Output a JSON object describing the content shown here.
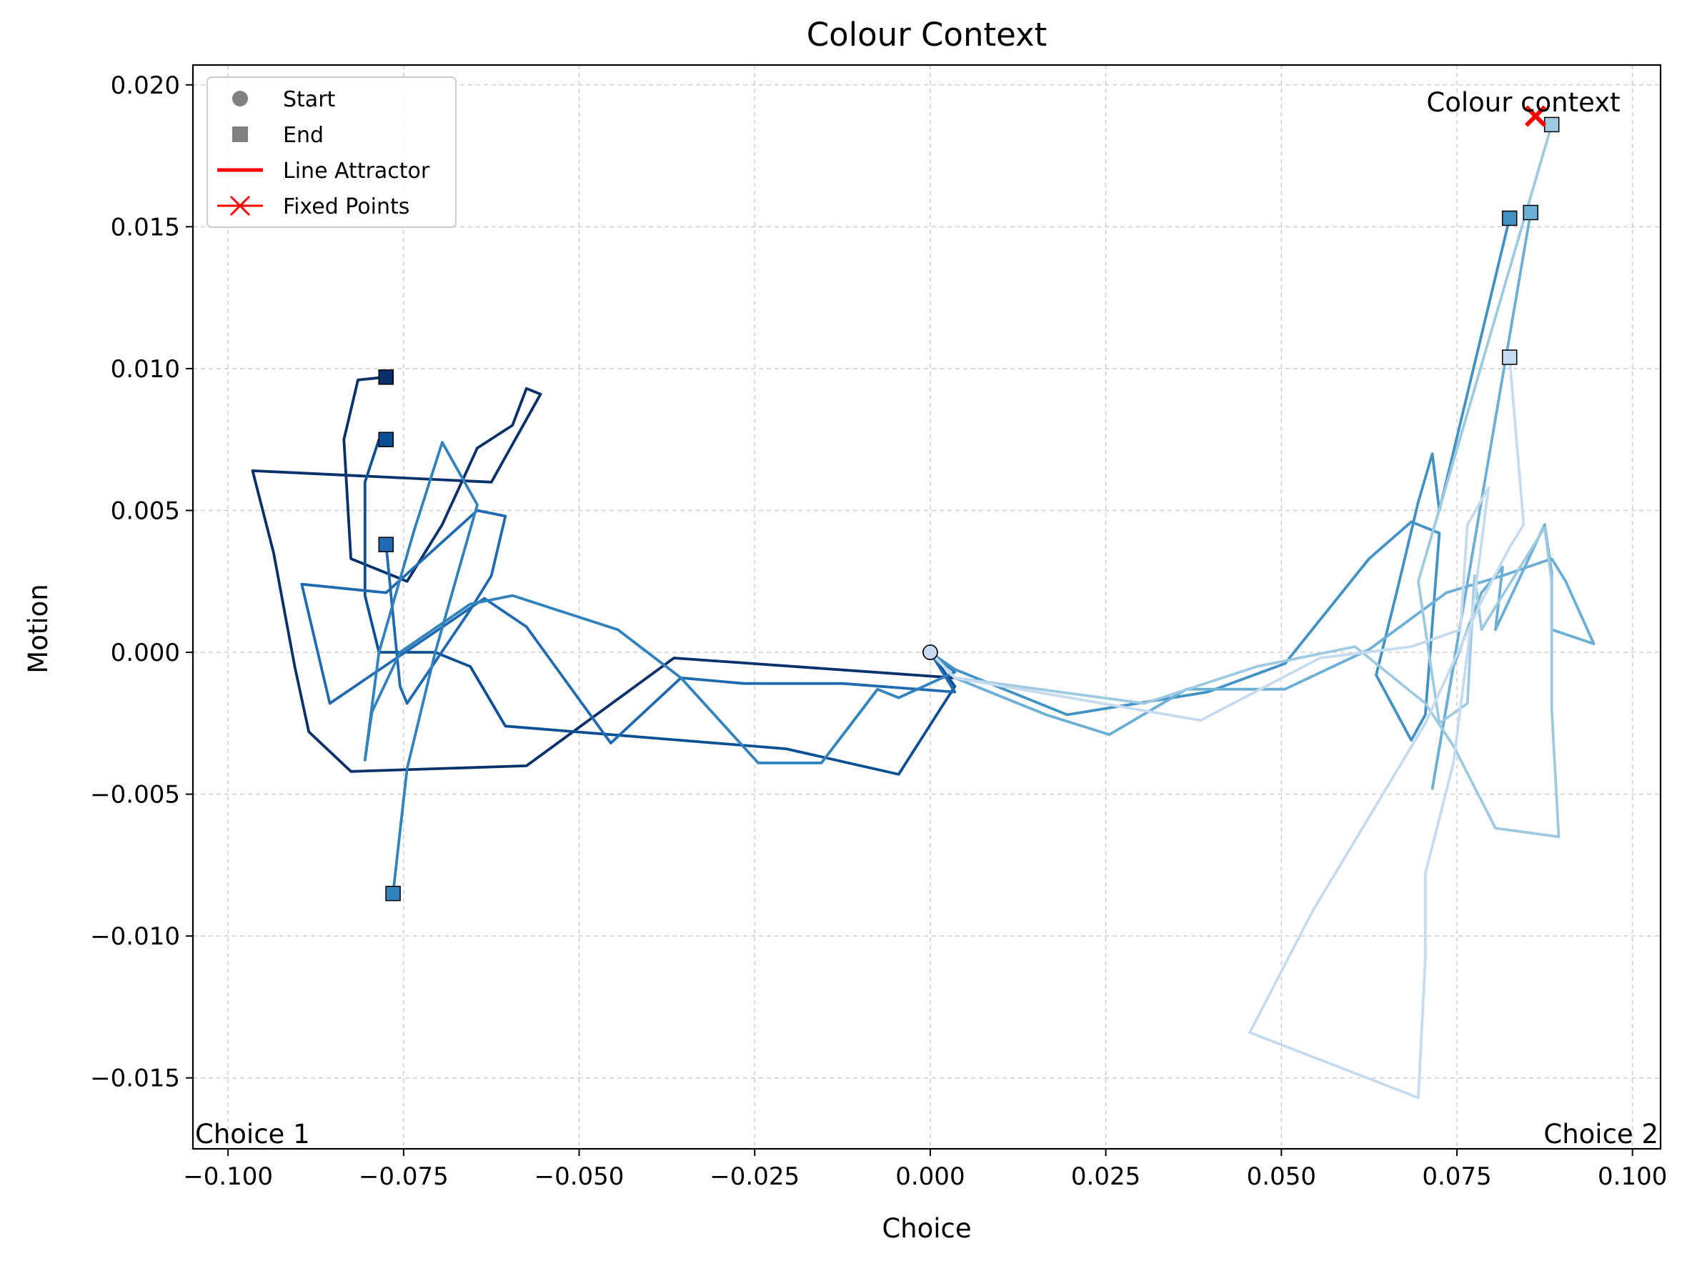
{
  "chart_data": {
    "type": "line",
    "title": "Colour Context",
    "xlabel": "Choice",
    "ylabel": "Motion",
    "xlim": [
      -0.105,
      0.104
    ],
    "ylim": [
      -0.0175,
      0.0207
    ],
    "xticks": [
      -0.1,
      -0.075,
      -0.05,
      -0.025,
      0.0,
      0.025,
      0.05,
      0.075,
      0.1
    ],
    "xtick_labels": [
      "−0.100",
      "−0.075",
      "−0.050",
      "−0.025",
      "0.000",
      "0.025",
      "0.050",
      "0.075",
      "0.100"
    ],
    "yticks": [
      0.02,
      0.015,
      0.01,
      0.005,
      0.0,
      -0.005,
      -0.01,
      -0.015
    ],
    "ytick_labels": [
      "0.020",
      "0.015",
      "0.010",
      "0.005",
      "0.000",
      "−0.005",
      "−0.010",
      "−0.015"
    ],
    "grid": true,
    "legend_position": "top-left",
    "legend": [
      {
        "label": "Start",
        "marker": "circle",
        "color": "#808080"
      },
      {
        "label": "End",
        "marker": "square",
        "color": "#808080"
      },
      {
        "label": "Line Attractor",
        "marker": "line",
        "color": "#ff0000"
      },
      {
        "label": "Fixed Points",
        "marker": "x",
        "color": "#ff0000"
      }
    ],
    "annotations": {
      "fixed_point_label": "Colour context",
      "left_corner": "Choice 1",
      "right_corner": "Choice 2"
    },
    "fixed_points": [
      {
        "x": 0.0862,
        "y": 0.0189
      }
    ],
    "series": [
      {
        "color": "#08306b",
        "points": [
          [
            0.0,
            0.0
          ],
          [
            0.0035,
            -0.0009
          ],
          [
            -0.0365,
            -0.0002
          ],
          [
            -0.0575,
            -0.004
          ],
          [
            -0.0825,
            -0.0042
          ],
          [
            -0.0885,
            -0.0028
          ],
          [
            -0.0905,
            -0.0005
          ],
          [
            -0.0935,
            0.0035
          ],
          [
            -0.0965,
            0.0064
          ],
          [
            -0.0625,
            0.006
          ],
          [
            -0.0555,
            0.0091
          ],
          [
            -0.0575,
            0.0093
          ],
          [
            -0.0595,
            0.008
          ],
          [
            -0.0645,
            0.0072
          ],
          [
            -0.0695,
            0.0045
          ],
          [
            -0.0745,
            0.0025
          ],
          [
            -0.0825,
            0.0033
          ],
          [
            -0.0835,
            0.0075
          ],
          [
            -0.0815,
            0.0096
          ],
          [
            -0.0775,
            0.0097
          ]
        ]
      },
      {
        "color": "#0b4f96",
        "points": [
          [
            0.0,
            0.0
          ],
          [
            0.0035,
            -0.0012
          ],
          [
            -0.0045,
            -0.0043
          ],
          [
            -0.0205,
            -0.0034
          ],
          [
            -0.0605,
            -0.0026
          ],
          [
            -0.0655,
            -0.0005
          ],
          [
            -0.0705,
            0.0
          ],
          [
            -0.0785,
            0.0
          ],
          [
            -0.0805,
            0.002
          ],
          [
            -0.0805,
            0.006
          ],
          [
            -0.0785,
            0.0075
          ],
          [
            -0.0775,
            0.0075
          ]
        ]
      },
      {
        "color": "#1f6ab0",
        "points": [
          [
            0.0,
            0.0
          ],
          [
            0.0035,
            -0.0014
          ],
          [
            -0.0125,
            -0.0011
          ],
          [
            -0.0265,
            -0.0011
          ],
          [
            -0.0355,
            -0.0009
          ],
          [
            -0.0455,
            -0.0032
          ],
          [
            -0.0575,
            0.0009
          ],
          [
            -0.0635,
            0.0019
          ],
          [
            -0.0855,
            -0.0018
          ],
          [
            -0.0895,
            0.0024
          ],
          [
            -0.0775,
            0.0021
          ],
          [
            -0.0645,
            0.005
          ],
          [
            -0.0605,
            0.0048
          ],
          [
            -0.0625,
            0.0027
          ],
          [
            -0.0655,
            0.0015
          ],
          [
            -0.0745,
            -0.0018
          ],
          [
            -0.0755,
            -0.0012
          ],
          [
            -0.0775,
            0.0038
          ]
        ]
      },
      {
        "color": "#3182bd",
        "points": [
          [
            0.0,
            0.0
          ],
          [
            0.0035,
            -0.0007
          ],
          [
            -0.0045,
            -0.0016
          ],
          [
            -0.0075,
            -0.0013
          ],
          [
            -0.0155,
            -0.0039
          ],
          [
            -0.0245,
            -0.0039
          ],
          [
            -0.0355,
            -0.0009
          ],
          [
            -0.0445,
            0.0008
          ],
          [
            -0.0595,
            0.002
          ],
          [
            -0.0655,
            0.0017
          ],
          [
            -0.0755,
            0.0
          ],
          [
            -0.0795,
            -0.0021
          ],
          [
            -0.0805,
            -0.0038
          ],
          [
            -0.0785,
            0.0
          ],
          [
            -0.0735,
            0.0043
          ],
          [
            -0.0695,
            0.0074
          ],
          [
            -0.0645,
            0.0052
          ],
          [
            -0.0705,
            0.0
          ],
          [
            -0.0745,
            -0.0041
          ],
          [
            -0.0765,
            -0.0085
          ]
        ]
      },
      {
        "color": "#4292c6",
        "points": [
          [
            0.0,
            0.0
          ],
          [
            0.0035,
            -0.0006
          ],
          [
            0.0195,
            -0.0022
          ],
          [
            0.0395,
            -0.0014
          ],
          [
            0.0505,
            -0.0004
          ],
          [
            0.0625,
            0.0033
          ],
          [
            0.0685,
            0.0046
          ],
          [
            0.0725,
            0.0042
          ],
          [
            0.0705,
            -0.0022
          ],
          [
            0.0685,
            -0.0031
          ],
          [
            0.0635,
            -0.0008
          ],
          [
            0.0665,
            0.0022
          ],
          [
            0.0695,
            0.0053
          ],
          [
            0.0715,
            0.007
          ],
          [
            0.0725,
            0.005
          ],
          [
            0.0825,
            0.0153
          ]
        ]
      },
      {
        "color": "#6baed6",
        "points": [
          [
            0.0,
            0.0
          ],
          [
            0.0035,
            -0.0009
          ],
          [
            0.0165,
            -0.0022
          ],
          [
            0.0255,
            -0.0029
          ],
          [
            0.0365,
            -0.0013
          ],
          [
            0.0505,
            -0.0013
          ],
          [
            0.0625,
            0.0001
          ],
          [
            0.0735,
            0.0021
          ],
          [
            0.0815,
            0.0027
          ],
          [
            0.0885,
            0.0033
          ],
          [
            0.0905,
            0.0025
          ],
          [
            0.0945,
            0.0003
          ],
          [
            0.0885,
            0.0008
          ],
          [
            0.0885,
            0.0028
          ],
          [
            0.0875,
            0.0045
          ],
          [
            0.0805,
            0.0008
          ],
          [
            0.0815,
            0.003
          ],
          [
            0.0785,
            0.0021
          ],
          [
            0.0745,
            -0.0005
          ],
          [
            0.0715,
            -0.0048
          ],
          [
            0.0855,
            0.0155
          ]
        ]
      },
      {
        "color": "#9ecae1",
        "points": [
          [
            0.0,
            0.0
          ],
          [
            0.0035,
            -0.0009
          ],
          [
            0.0305,
            -0.0018
          ],
          [
            0.0465,
            -0.0005
          ],
          [
            0.0605,
            0.0002
          ],
          [
            0.0705,
            -0.0018
          ],
          [
            0.0745,
            -0.0033
          ],
          [
            0.0805,
            -0.0062
          ],
          [
            0.0895,
            -0.0065
          ],
          [
            0.0885,
            -0.002
          ],
          [
            0.0885,
            0.0025
          ],
          [
            0.0875,
            0.0044
          ],
          [
            0.0785,
            0.0008
          ],
          [
            0.0775,
            0.0027
          ],
          [
            0.0765,
            -0.0018
          ],
          [
            0.0725,
            -0.0025
          ],
          [
            0.0695,
            0.0025
          ],
          [
            0.0885,
            0.0186
          ]
        ]
      },
      {
        "color": "#c6dbef",
        "points": [
          [
            0.0,
            0.0
          ],
          [
            0.0035,
            -0.0009
          ],
          [
            0.0385,
            -0.0024
          ],
          [
            0.0555,
            -0.0002
          ],
          [
            0.0685,
            0.0002
          ],
          [
            0.0755,
            0.0008
          ],
          [
            0.0765,
            0.0045
          ],
          [
            0.0795,
            0.0058
          ],
          [
            0.0745,
            -0.0039
          ],
          [
            0.0705,
            -0.0078
          ],
          [
            0.0705,
            -0.0108
          ],
          [
            0.0695,
            -0.0157
          ],
          [
            0.0455,
            -0.0134
          ],
          [
            0.0545,
            -0.0091
          ],
          [
            0.0705,
            -0.0025
          ],
          [
            0.0785,
            0.0018
          ],
          [
            0.0825,
            0.0037
          ],
          [
            0.0845,
            0.0045
          ],
          [
            0.0825,
            0.0104
          ]
        ]
      }
    ]
  }
}
